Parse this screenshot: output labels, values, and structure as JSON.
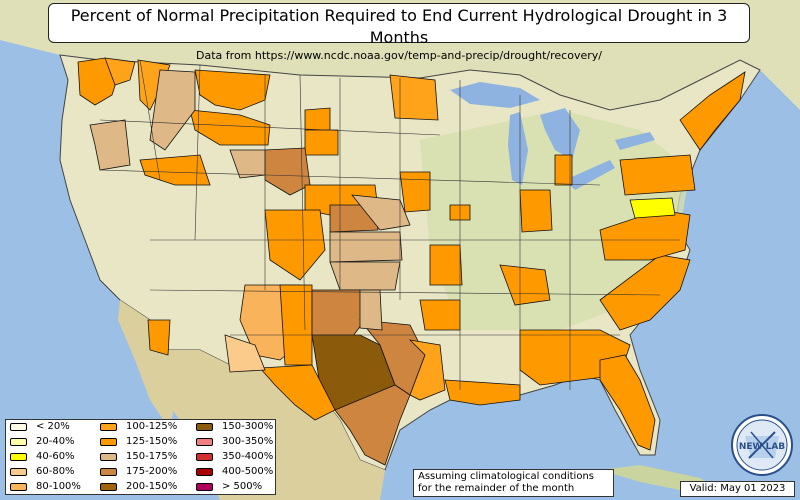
{
  "title": "Percent of Normal Precipitation Required to End Current Hydrological Drought in 3 Months",
  "subtitle": "Data from https://www.ncdc.noaa.gov/temp-and-precip/drought/recovery/",
  "legend": {
    "items": [
      {
        "label": "< 20%",
        "color": "#fffbe3"
      },
      {
        "label": "20-40%",
        "color": "#ffffaa"
      },
      {
        "label": "40-60%",
        "color": "#ffff00"
      },
      {
        "label": "60-80%",
        "color": "#fbcb8b"
      },
      {
        "label": "80-100%",
        "color": "#f9b35a"
      },
      {
        "label": "100-125%",
        "color": "#ffa31a"
      },
      {
        "label": "125-150%",
        "color": "#ff9900"
      },
      {
        "label": "150-175%",
        "color": "#deb887"
      },
      {
        "label": "175-200%",
        "color": "#cd853f"
      },
      {
        "label": "200-150%",
        "color": "#a0620a"
      },
      {
        "label": "150-300%",
        "color": "#8b5a0a"
      },
      {
        "label": "300-350%",
        "color": "#f08080"
      },
      {
        "label": "350-400%",
        "color": "#d03030"
      },
      {
        "label": "400-500%",
        "color": "#aa0000"
      },
      {
        "label": "> 500%",
        "color": "#b3005f"
      }
    ]
  },
  "note": {
    "line1": "Assuming climatological conditions",
    "line2": "for the remainder of the month"
  },
  "valid_label": "Valid: May 01 2023",
  "logo_text": "NEW LAB",
  "colors": {
    "ocean": "#9cbfe6",
    "land": "#e8e6c4",
    "land_green": "#c9d9a4",
    "lake": "#8fb3e0",
    "border": "#222222"
  }
}
